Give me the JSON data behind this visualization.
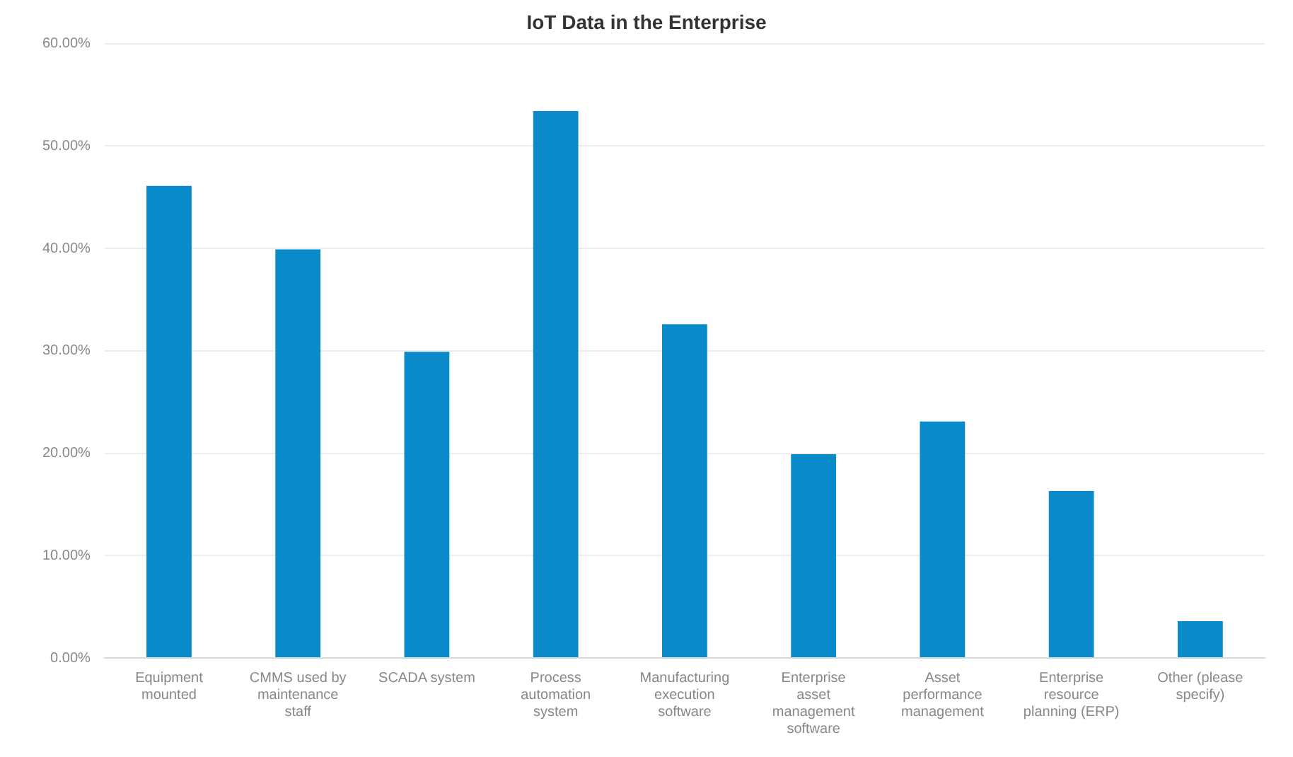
{
  "chart_data": {
    "type": "bar",
    "title": "IoT Data in the Enterprise",
    "categories": [
      "Equipment mounted",
      "CMMS used by maintenance staff",
      "SCADA system",
      "Process automation system",
      "Manufacturing execution software",
      "Enterprise asset management software",
      "Asset performance management",
      "Enterprise resource planning (ERP)",
      "Other (please specify)"
    ],
    "values": [
      46.1,
      39.9,
      29.9,
      53.4,
      32.6,
      19.9,
      23.1,
      16.3,
      3.6
    ],
    "color": "#0a8ac8",
    "ylim": [
      0,
      60
    ],
    "yticks": [
      {
        "value": 0,
        "label": "0.00%"
      },
      {
        "value": 10,
        "label": "10.00%"
      },
      {
        "value": 20,
        "label": "20.00%"
      },
      {
        "value": 30,
        "label": "30.00%"
      },
      {
        "value": 40,
        "label": "40.00%"
      },
      {
        "value": 50,
        "label": "50.00%"
      },
      {
        "value": 60,
        "label": "60.00%"
      }
    ],
    "grid": "y",
    "legend": false
  }
}
